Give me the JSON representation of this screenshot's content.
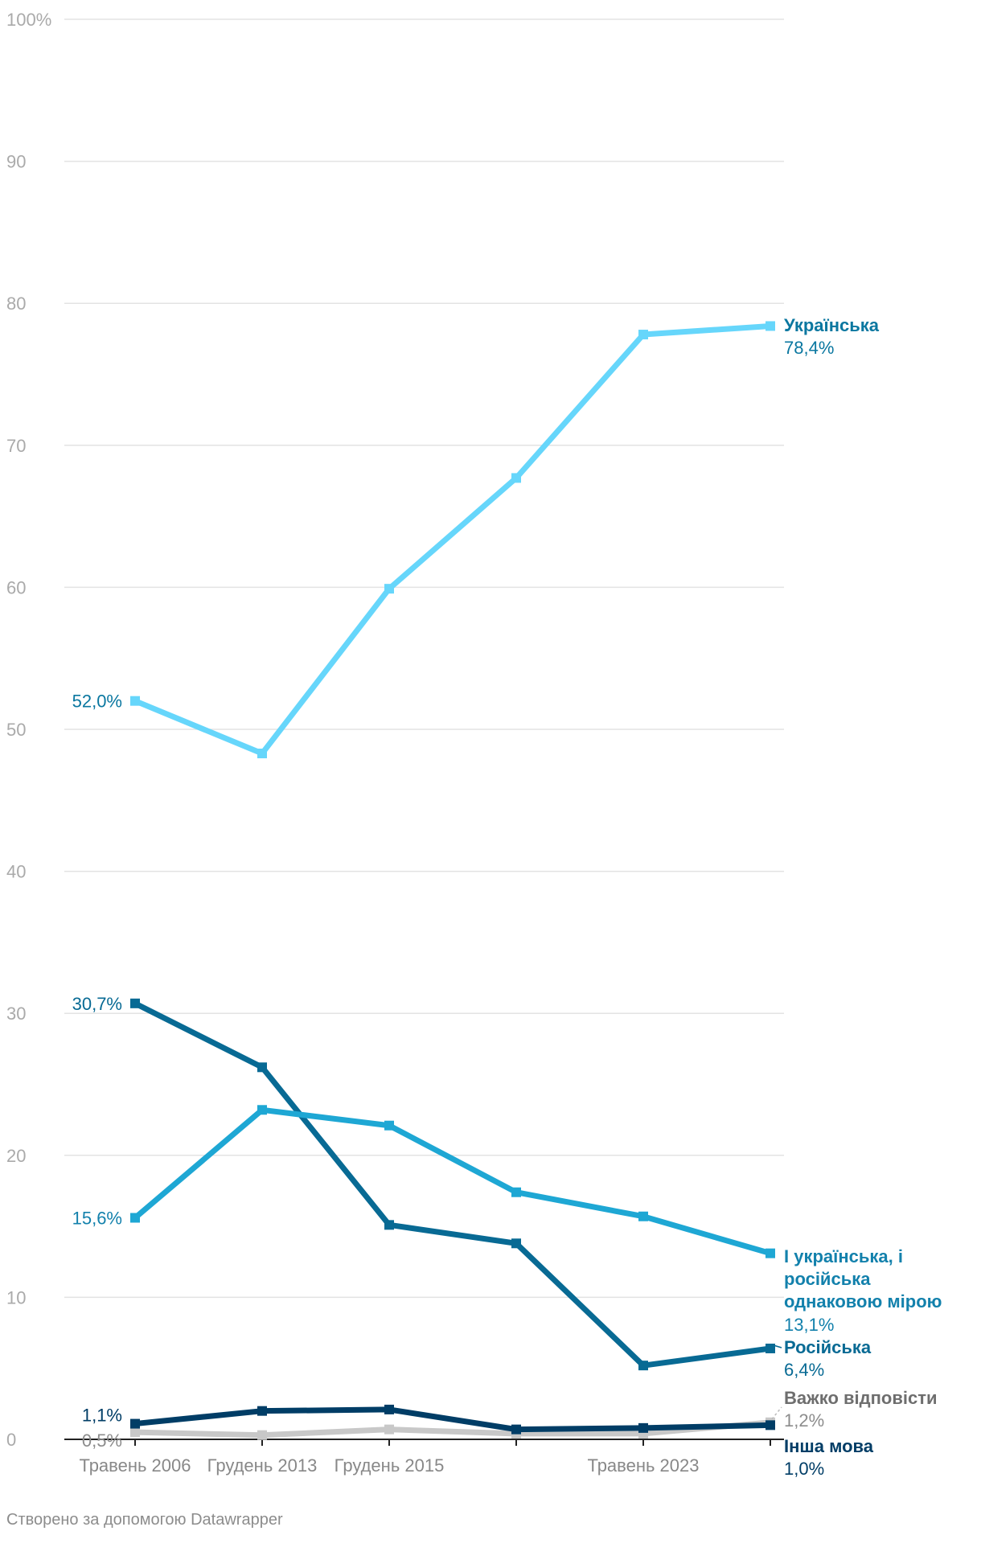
{
  "chart_data": {
    "type": "line",
    "title": "",
    "xlabel": "",
    "ylabel": "",
    "ylim": [
      0,
      100
    ],
    "y_ticks": [
      0,
      10,
      20,
      30,
      40,
      50,
      60,
      70,
      80,
      90,
      100
    ],
    "y_tick_labels": [
      "0",
      "10",
      "20",
      "30",
      "40",
      "50",
      "60",
      "70",
      "80",
      "90",
      "100%"
    ],
    "categories": [
      "Травень 2006",
      "Грудень 2013",
      "Грудень 2015",
      "",
      "Травень 2023",
      ""
    ],
    "grid": true,
    "series": [
      {
        "name": "Важко відповісти",
        "color": "#c8c8c8",
        "values": [
          0.5,
          0.3,
          0.7,
          0.4,
          0.4,
          1.2
        ],
        "end_label": "1,2%",
        "start_label": "0,5%",
        "name_color": "#6e6e6e",
        "value_color": "#8c8c8c"
      },
      {
        "name": "Інша мова",
        "color": "#003d66",
        "values": [
          1.1,
          2.0,
          2.1,
          0.7,
          0.8,
          1.0
        ],
        "end_label": "1,0%",
        "start_label": "1,1%",
        "name_color": "#003d66",
        "value_color": "#003d66"
      },
      {
        "name": "Російська",
        "color": "#086a94",
        "values": [
          30.7,
          26.2,
          15.1,
          13.8,
          5.2,
          6.4
        ],
        "end_label": "6,4%",
        "start_label": "30,7%",
        "name_color": "#086a94",
        "value_color": "#086a94"
      },
      {
        "name": "І українська, і російська однаковою мірою",
        "name_lines": [
          "І українська, і",
          "російська",
          "однаковою мірою"
        ],
        "color": "#1ea7d4",
        "values": [
          15.6,
          23.2,
          22.1,
          17.4,
          15.7,
          13.1
        ],
        "end_label": "13,1%",
        "start_label": "15,6%",
        "name_color": "#1381ac",
        "value_color": "#1381ac"
      },
      {
        "name": "Українська",
        "color": "#66d6fb",
        "values": [
          52.0,
          48.3,
          59.9,
          67.7,
          77.8,
          78.4
        ],
        "end_label": "78,4%",
        "start_label": "52,0%",
        "name_color": "#0a77a0",
        "value_color": "#0a77a0"
      }
    ]
  },
  "footer": {
    "credit": "Створено за допомогою Datawrapper"
  }
}
